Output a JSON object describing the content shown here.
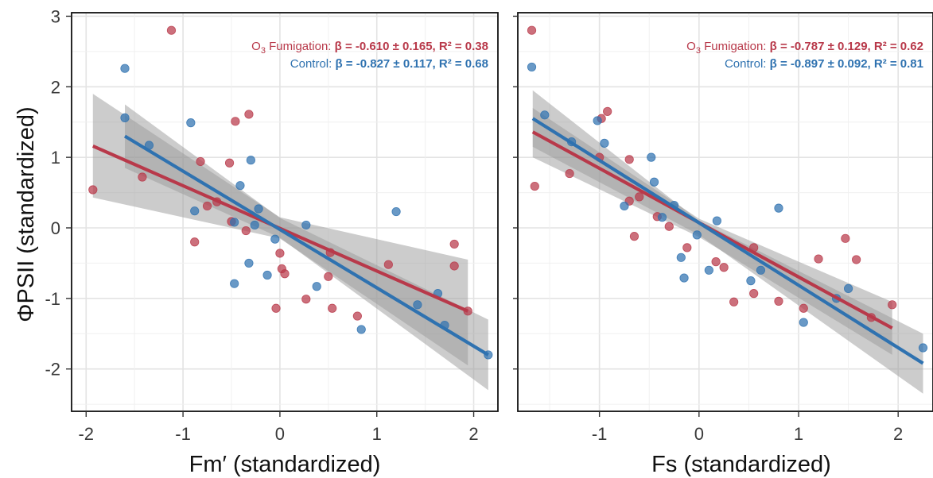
{
  "ylabel": "ΦPSII (standardized)",
  "colors": {
    "o3": "#b8394a",
    "control": "#2f72b0",
    "ci": "#9a9a9a"
  },
  "chart_data": [
    {
      "type": "scatter",
      "xlabel": "Fm′ (standardized)",
      "ylabel": "ΦPSII (standardized)",
      "xlim": [
        -2.15,
        2.25
      ],
      "ylim": [
        -2.6,
        3.05
      ],
      "x_ticks": [
        "-2",
        "-1",
        "0",
        "1",
        "2"
      ],
      "y_ticks": [
        "-2",
        "-1",
        "0",
        "1",
        "2",
        "3"
      ],
      "grid": true,
      "annotation": {
        "o3": {
          "prefix": "O",
          "sub": "3",
          "name": " Fumigation: ",
          "stats": "β = -0.610 ± 0.165, R² = 0.38"
        },
        "control": {
          "name": "Control: ",
          "stats": "β = -0.827 ± 0.117, R² = 0.68"
        }
      },
      "series": [
        {
          "name": "O₃ Fumigation",
          "key": "o3",
          "fit": {
            "x": [
              -1.93,
              1.94
            ],
            "y": [
              1.16,
              -1.18
            ]
          },
          "ci": {
            "x": [
              -1.93,
              0,
              1.94
            ],
            "upper": [
              1.9,
              0.15,
              -0.45
            ],
            "lower": [
              0.43,
              -0.15,
              -1.95
            ]
          },
          "points": [
            [
              -1.93,
              0.54
            ],
            [
              -1.12,
              2.8
            ],
            [
              -1.42,
              0.72
            ],
            [
              -0.88,
              -0.2
            ],
            [
              -0.82,
              0.94
            ],
            [
              -0.75,
              0.31
            ],
            [
              -0.65,
              0.37
            ],
            [
              -0.52,
              0.92
            ],
            [
              -0.5,
              0.09
            ],
            [
              -0.46,
              1.51
            ],
            [
              -0.35,
              -0.04
            ],
            [
              -0.32,
              1.61
            ],
            [
              0.0,
              -0.36
            ],
            [
              0.02,
              -0.58
            ],
            [
              0.05,
              -0.65
            ],
            [
              -0.04,
              -1.14
            ],
            [
              0.27,
              -1.01
            ],
            [
              0.5,
              -0.69
            ],
            [
              0.54,
              -1.14
            ],
            [
              0.52,
              -0.35
            ],
            [
              0.8,
              -1.25
            ],
            [
              1.12,
              -0.52
            ],
            [
              1.8,
              -0.23
            ],
            [
              1.8,
              -0.54
            ],
            [
              1.94,
              -1.18
            ]
          ]
        },
        {
          "name": "Control",
          "key": "control",
          "fit": {
            "x": [
              -1.6,
              2.15
            ],
            "y": [
              1.3,
              -1.8
            ]
          },
          "ci": {
            "x": [
              -1.6,
              0,
              2.15
            ],
            "upper": [
              1.75,
              0.14,
              -1.3
            ],
            "lower": [
              0.85,
              -0.14,
              -2.3
            ]
          },
          "points": [
            [
              -1.6,
              2.26
            ],
            [
              -1.6,
              1.56
            ],
            [
              -1.35,
              1.17
            ],
            [
              -0.92,
              1.49
            ],
            [
              -0.88,
              0.24
            ],
            [
              -0.47,
              0.08
            ],
            [
              -0.47,
              -0.79
            ],
            [
              -0.41,
              0.6
            ],
            [
              -0.32,
              -0.5
            ],
            [
              -0.3,
              0.96
            ],
            [
              -0.26,
              0.04
            ],
            [
              -0.22,
              0.27
            ],
            [
              -0.13,
              -0.67
            ],
            [
              -0.05,
              -0.16
            ],
            [
              0.27,
              0.04
            ],
            [
              0.38,
              -0.83
            ],
            [
              0.84,
              -1.44
            ],
            [
              1.2,
              0.23
            ],
            [
              1.42,
              -1.09
            ],
            [
              1.63,
              -0.93
            ],
            [
              1.7,
              -1.38
            ],
            [
              2.15,
              -1.8
            ]
          ]
        }
      ]
    },
    {
      "type": "scatter",
      "xlabel": "Fs (standardized)",
      "xlim": [
        -1.82,
        2.35
      ],
      "ylim": [
        -2.6,
        3.05
      ],
      "x_ticks": [
        "-1",
        "0",
        "1",
        "2"
      ],
      "grid": true,
      "annotation": {
        "o3": {
          "prefix": "O",
          "sub": "3",
          "name": " Fumigation: ",
          "stats": "β = -0.787 ± 0.129, R² = 0.62"
        },
        "control": {
          "name": "Control: ",
          "stats": "β = -0.897 ± 0.092, R² = 0.81"
        }
      },
      "series": [
        {
          "name": "O₃ Fumigation",
          "key": "o3",
          "fit": {
            "x": [
              -1.67,
              1.94
            ],
            "y": [
              1.36,
              -1.42
            ]
          },
          "ci": {
            "x": [
              -1.67,
              0,
              1.94
            ],
            "upper": [
              1.7,
              0.13,
              -1.05
            ],
            "lower": [
              1.0,
              -0.13,
              -1.8
            ]
          },
          "points": [
            [
              -1.68,
              2.8
            ],
            [
              -1.65,
              0.59
            ],
            [
              -1.3,
              0.77
            ],
            [
              -1.0,
              1.0
            ],
            [
              -0.98,
              1.55
            ],
            [
              -0.92,
              1.65
            ],
            [
              -0.7,
              0.97
            ],
            [
              -0.7,
              0.38
            ],
            [
              -0.65,
              -0.12
            ],
            [
              -0.6,
              0.44
            ],
            [
              -0.42,
              0.16
            ],
            [
              -0.3,
              0.02
            ],
            [
              -0.12,
              -0.28
            ],
            [
              0.17,
              -0.48
            ],
            [
              0.25,
              -0.56
            ],
            [
              0.35,
              -1.05
            ],
            [
              0.55,
              -0.28
            ],
            [
              0.55,
              -0.93
            ],
            [
              0.8,
              -1.04
            ],
            [
              1.05,
              -1.14
            ],
            [
              1.2,
              -0.44
            ],
            [
              1.47,
              -0.15
            ],
            [
              1.58,
              -0.45
            ],
            [
              1.73,
              -1.27
            ],
            [
              1.94,
              -1.09
            ]
          ]
        },
        {
          "name": "Control",
          "key": "control",
          "fit": {
            "x": [
              -1.67,
              2.25
            ],
            "y": [
              1.55,
              -1.92
            ]
          },
          "ci": {
            "x": [
              -1.67,
              0,
              2.25
            ],
            "upper": [
              1.95,
              0.1,
              -1.5
            ],
            "lower": [
              1.15,
              -0.1,
              -2.35
            ]
          },
          "points": [
            [
              -1.68,
              2.28
            ],
            [
              -1.55,
              1.6
            ],
            [
              -1.28,
              1.22
            ],
            [
              -1.02,
              1.52
            ],
            [
              -0.95,
              1.2
            ],
            [
              -0.75,
              0.31
            ],
            [
              -0.48,
              1.0
            ],
            [
              -0.45,
              0.65
            ],
            [
              -0.37,
              0.15
            ],
            [
              -0.25,
              0.32
            ],
            [
              -0.18,
              -0.42
            ],
            [
              -0.15,
              -0.71
            ],
            [
              -0.02,
              -0.1
            ],
            [
              0.1,
              -0.6
            ],
            [
              0.18,
              0.1
            ],
            [
              0.52,
              -0.75
            ],
            [
              0.62,
              -0.6
            ],
            [
              0.8,
              0.28
            ],
            [
              1.05,
              -1.34
            ],
            [
              1.38,
              -1.0
            ],
            [
              1.5,
              -0.86
            ],
            [
              2.25,
              -1.7
            ]
          ]
        }
      ]
    }
  ]
}
